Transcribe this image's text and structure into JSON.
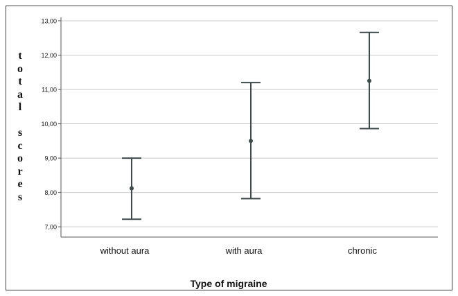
{
  "chart_data": {
    "type": "errorbar",
    "title": "",
    "xlabel": "Type of migraine",
    "ylabel_words": [
      "total",
      "scores"
    ],
    "categories": [
      "without aura",
      "with aura",
      "chronic"
    ],
    "means": [
      8.12,
      9.5,
      11.25
    ],
    "lower": [
      7.22,
      7.82,
      9.86
    ],
    "upper": [
      9.0,
      11.2,
      12.66
    ],
    "ylim": [
      6.7,
      13.1
    ],
    "yticks": [
      7,
      8,
      9,
      10,
      11,
      12,
      13
    ],
    "ytick_labels": [
      "7,00",
      "8,00",
      "9,00",
      "10,00",
      "11,00",
      "12,00",
      "13,00"
    ],
    "grid": true,
    "colors": {
      "series": "#3d4a4a",
      "grid": "#c8c8c8",
      "axis": "#555555",
      "text": "#111111"
    }
  }
}
